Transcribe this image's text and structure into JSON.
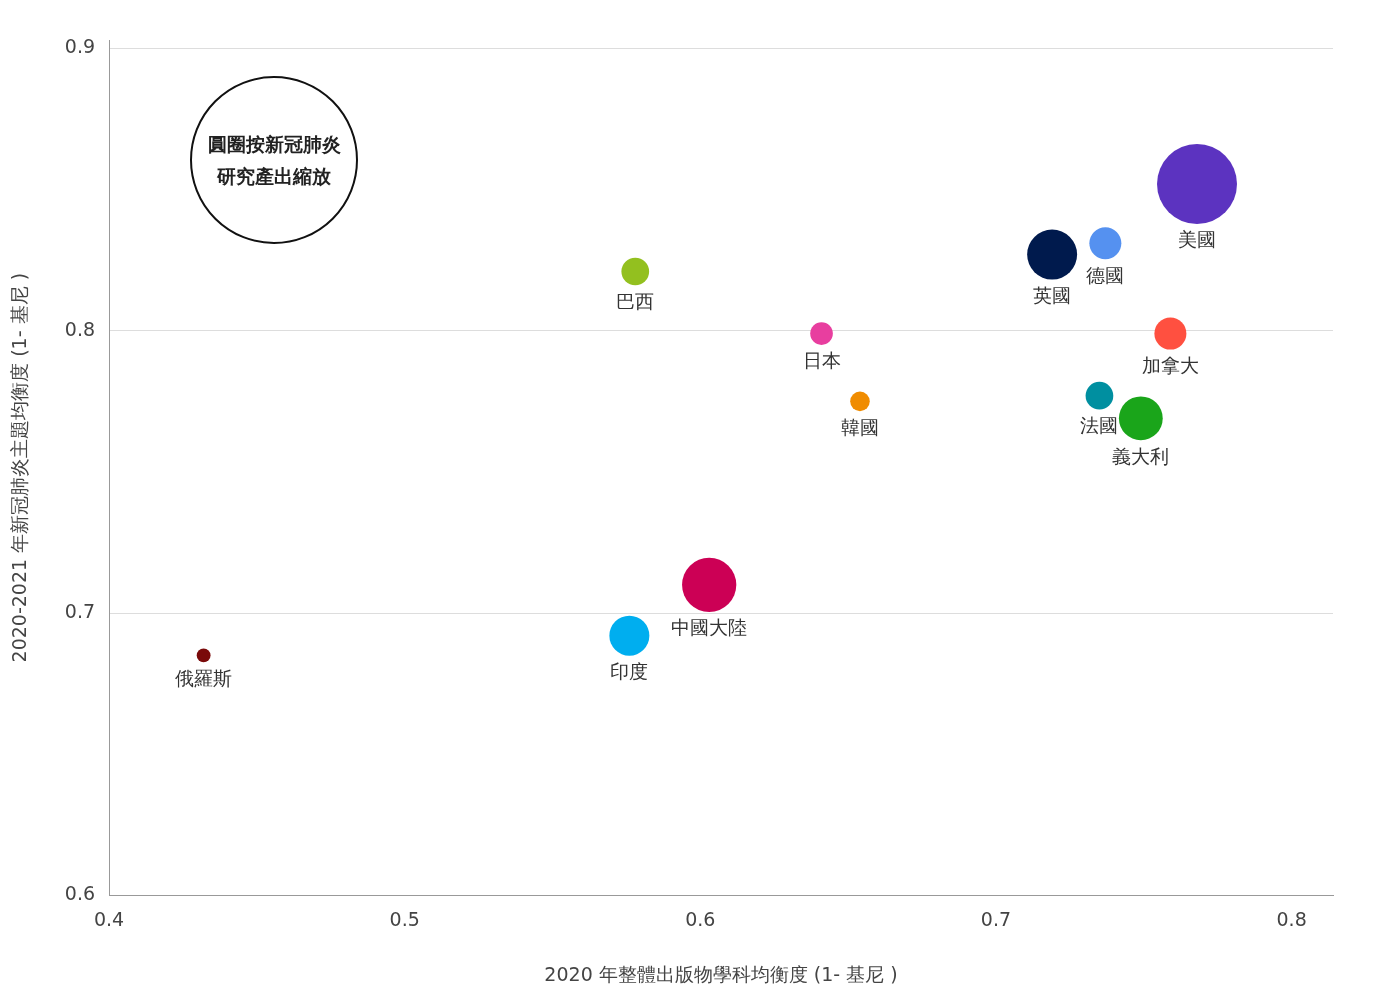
{
  "chart_data": {
    "type": "bubble",
    "xlabel": "2020 年整體出版物學科均衡度 (1- 基尼 )",
    "ylabel": "2020-2021 年新冠肺炎主題均衡度 (1- 基尼 )",
    "annotations": [
      "圓圈按新冠肺炎研究產出縮放"
    ],
    "xlim": [
      0.4,
      0.814
    ],
    "xticks": [
      0.4,
      0.5,
      0.6,
      0.7,
      0.8
    ],
    "ylim": [
      0.6,
      0.903
    ],
    "yticks": [
      0.6,
      0.7,
      0.8,
      0.9
    ],
    "grid": "y",
    "legend": false,
    "series": [
      {
        "name": "俄羅斯",
        "color": "#7a0a0a",
        "x": [
          0.432
        ],
        "values": [
          0.685
        ],
        "sizes": [
          0.03
        ]
      },
      {
        "name": "印度",
        "color": "#00aeef",
        "x": [
          0.576
        ],
        "values": [
          0.692
        ],
        "sizes": [
          0.25
        ]
      },
      {
        "name": "中國大陸",
        "color": "#cc0055",
        "x": [
          0.603
        ],
        "values": [
          0.71
        ],
        "sizes": [
          0.46
        ]
      },
      {
        "name": "巴西",
        "color": "#93c01f",
        "x": [
          0.578
        ],
        "values": [
          0.821
        ],
        "sizes": [
          0.12
        ]
      },
      {
        "name": "日本",
        "color": "#e83e9f",
        "x": [
          0.641
        ],
        "values": [
          0.799
        ],
        "sizes": [
          0.08
        ]
      },
      {
        "name": "韓國",
        "color": "#f08c00",
        "x": [
          0.654
        ],
        "values": [
          0.775
        ],
        "sizes": [
          0.06
        ]
      },
      {
        "name": "英國",
        "color": "#001a4d",
        "x": [
          0.719
        ],
        "values": [
          0.827
        ],
        "sizes": [
          0.39
        ]
      },
      {
        "name": "德國",
        "color": "#5591f0",
        "x": [
          0.737
        ],
        "values": [
          0.831
        ],
        "sizes": [
          0.16
        ]
      },
      {
        "name": "美國",
        "color": "#5c33c0",
        "x": [
          0.768
        ],
        "values": [
          0.852
        ],
        "sizes": [
          1
        ]
      },
      {
        "name": "加拿大",
        "color": "#ff5040",
        "x": [
          0.759
        ],
        "values": [
          0.799
        ],
        "sizes": [
          0.16
        ]
      },
      {
        "name": "法國",
        "color": "#008fa0",
        "x": [
          0.735
        ],
        "values": [
          0.777
        ],
        "sizes": [
          0.12
        ]
      },
      {
        "name": "義大利",
        "color": "#1aa51a",
        "x": [
          0.749
        ],
        "values": [
          0.769
        ],
        "sizes": [
          0.3
        ]
      }
    ]
  }
}
